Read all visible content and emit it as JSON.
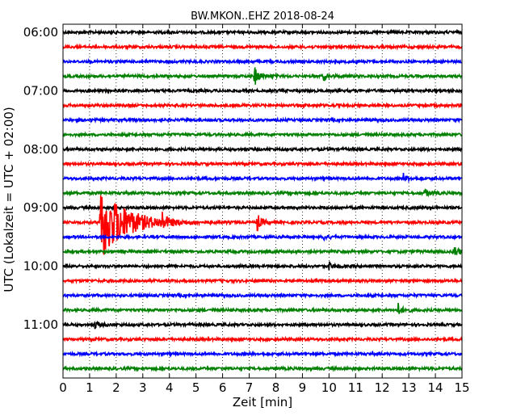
{
  "chart_data": {
    "type": "line",
    "title": "BW.MKON..EHZ 2018-08-24",
    "xlabel": "Zeit  [min]",
    "ylabel": "UTC (Lokalzeit = UTC + 02:00)",
    "xlim": [
      0,
      15
    ],
    "x_ticks": [
      "0",
      "1",
      "2",
      "3",
      "4",
      "5",
      "6",
      "7",
      "8",
      "9",
      "10",
      "11",
      "12",
      "13",
      "14",
      "15"
    ],
    "y_ticks": [
      "06:00",
      "07:00",
      "08:00",
      "09:00",
      "10:00",
      "11:00"
    ],
    "grid": "vertical dotted",
    "trace_interval_minutes": 15,
    "colors": [
      "#000000",
      "#ff0000",
      "#0000ff",
      "#008000"
    ],
    "traces": [
      {
        "start": "06:00",
        "color": "#000000",
        "events": []
      },
      {
        "start": "06:15",
        "color": "#ff0000",
        "events": []
      },
      {
        "start": "06:30",
        "color": "#0000ff",
        "events": []
      },
      {
        "start": "06:45",
        "color": "#008000",
        "events": [
          {
            "t": 7.2,
            "amp": 14
          },
          {
            "t": 9.8,
            "amp": 5
          }
        ]
      },
      {
        "start": "07:00",
        "color": "#000000",
        "events": []
      },
      {
        "start": "07:15",
        "color": "#ff0000",
        "events": []
      },
      {
        "start": "07:30",
        "color": "#0000ff",
        "events": []
      },
      {
        "start": "07:45",
        "color": "#008000",
        "events": []
      },
      {
        "start": "08:00",
        "color": "#000000",
        "events": []
      },
      {
        "start": "08:15",
        "color": "#ff0000",
        "events": []
      },
      {
        "start": "08:30",
        "color": "#0000ff",
        "events": [
          {
            "t": 12.8,
            "amp": 6
          }
        ]
      },
      {
        "start": "08:45",
        "color": "#008000",
        "events": [
          {
            "t": 13.6,
            "amp": 6
          }
        ]
      },
      {
        "start": "09:00",
        "color": "#000000",
        "events": []
      },
      {
        "start": "09:15",
        "color": "#ff0000",
        "events": [
          {
            "t": 1.4,
            "amp": 95
          },
          {
            "t": 3.7,
            "amp": 12
          },
          {
            "t": 7.3,
            "amp": 11
          }
        ]
      },
      {
        "start": "09:30",
        "color": "#0000ff",
        "events": [
          {
            "t": 9.8,
            "amp": 4
          }
        ]
      },
      {
        "start": "09:45",
        "color": "#008000",
        "events": [
          {
            "t": 14.7,
            "amp": 10
          }
        ]
      },
      {
        "start": "10:00",
        "color": "#000000",
        "events": [
          {
            "t": 10.0,
            "amp": 5
          }
        ]
      },
      {
        "start": "10:15",
        "color": "#ff0000",
        "events": []
      },
      {
        "start": "10:30",
        "color": "#0000ff",
        "events": []
      },
      {
        "start": "10:45",
        "color": "#008000",
        "events": [
          {
            "t": 12.6,
            "amp": 8
          }
        ]
      },
      {
        "start": "11:00",
        "color": "#000000",
        "events": [
          {
            "t": 1.2,
            "amp": 5
          }
        ]
      },
      {
        "start": "11:15",
        "color": "#ff0000",
        "events": []
      },
      {
        "start": "11:30",
        "color": "#0000ff",
        "events": []
      },
      {
        "start": "11:45",
        "color": "#008000",
        "events": []
      }
    ]
  }
}
